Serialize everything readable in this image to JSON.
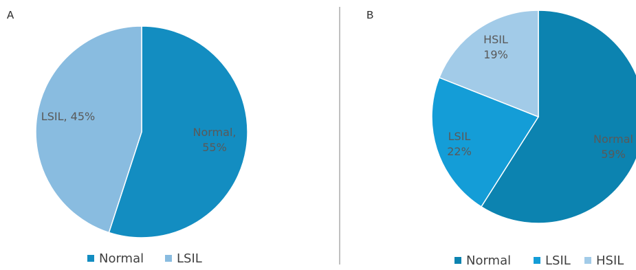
{
  "chart_data": [
    {
      "panel": "A",
      "type": "pie",
      "categories": [
        "Normal",
        "LSIL"
      ],
      "values": [
        55,
        45
      ],
      "slice_labels": [
        "Normal,\n55%",
        "LSIL, 45%"
      ],
      "colors": [
        "#138DC1",
        "#89BCE0"
      ],
      "legend": [
        "Normal",
        "LSIL"
      ],
      "legend_position": "bottom"
    },
    {
      "panel": "B",
      "type": "pie",
      "categories": [
        "Normal",
        "LSIL",
        "HSIL"
      ],
      "values": [
        59,
        22,
        19
      ],
      "slice_labels": [
        "Normal\n59%",
        "LSIL\n22%",
        "HSIL\n19%"
      ],
      "colors": [
        "#0C83B0",
        "#149DD7",
        "#A2CBE8"
      ],
      "legend": [
        "Normal",
        "LSIL",
        "HSIL"
      ],
      "legend_position": "bottom"
    }
  ]
}
